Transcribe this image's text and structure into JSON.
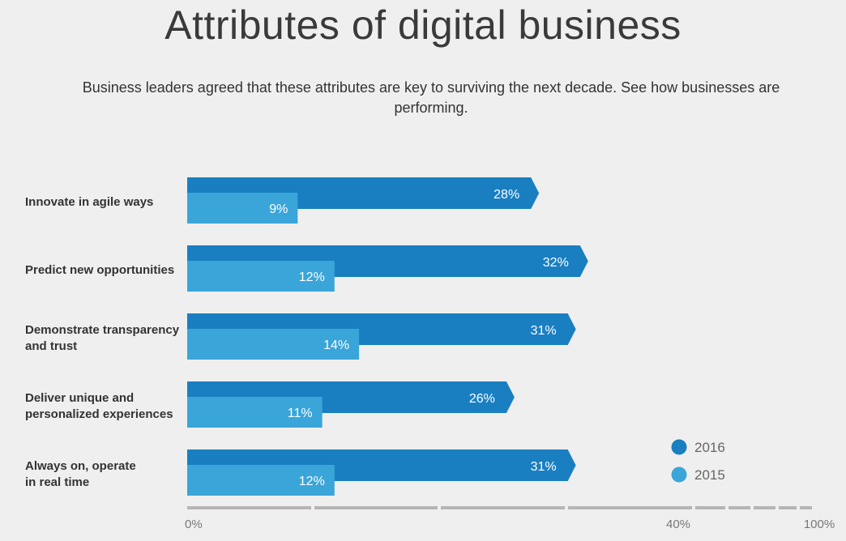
{
  "header": {
    "title": "Attributes of digital business",
    "subtitle": "Business leaders agreed that these attributes are key to surviving the next decade. See how businesses are performing."
  },
  "colors": {
    "series_2016": "#1a7fc1",
    "series_2015": "#3aa5d8",
    "axis": "#b5b5b5"
  },
  "chart_data": {
    "type": "bar",
    "orientation": "horizontal",
    "categories": [
      [
        "Innovate in agile ways"
      ],
      [
        "Predict new opportunities"
      ],
      [
        "Demonstrate transparency",
        "and trust"
      ],
      [
        "Deliver unique and",
        "personalized experiences"
      ],
      [
        "Always on, operate",
        "in real time"
      ]
    ],
    "series": [
      {
        "name": "2016",
        "values": [
          28,
          32,
          31,
          26,
          31
        ],
        "labels": [
          "28%",
          "32%",
          "31%",
          "26%",
          "31%"
        ]
      },
      {
        "name": "2015",
        "values": [
          9,
          12,
          14,
          11,
          12
        ],
        "labels": [
          "9%",
          "12%",
          "14%",
          "11%",
          "12%"
        ]
      }
    ],
    "x_ticks": [
      {
        "value": 0,
        "label": "0%"
      },
      {
        "value": 40,
        "label": "40%"
      },
      {
        "value": 100,
        "label": "100%"
      }
    ],
    "xlim": [
      0,
      100
    ],
    "scale": "piecewise: 0-40% occupies most of the axis, 40-100% is compressed",
    "legend_position": "bottom-right",
    "grid": false
  }
}
